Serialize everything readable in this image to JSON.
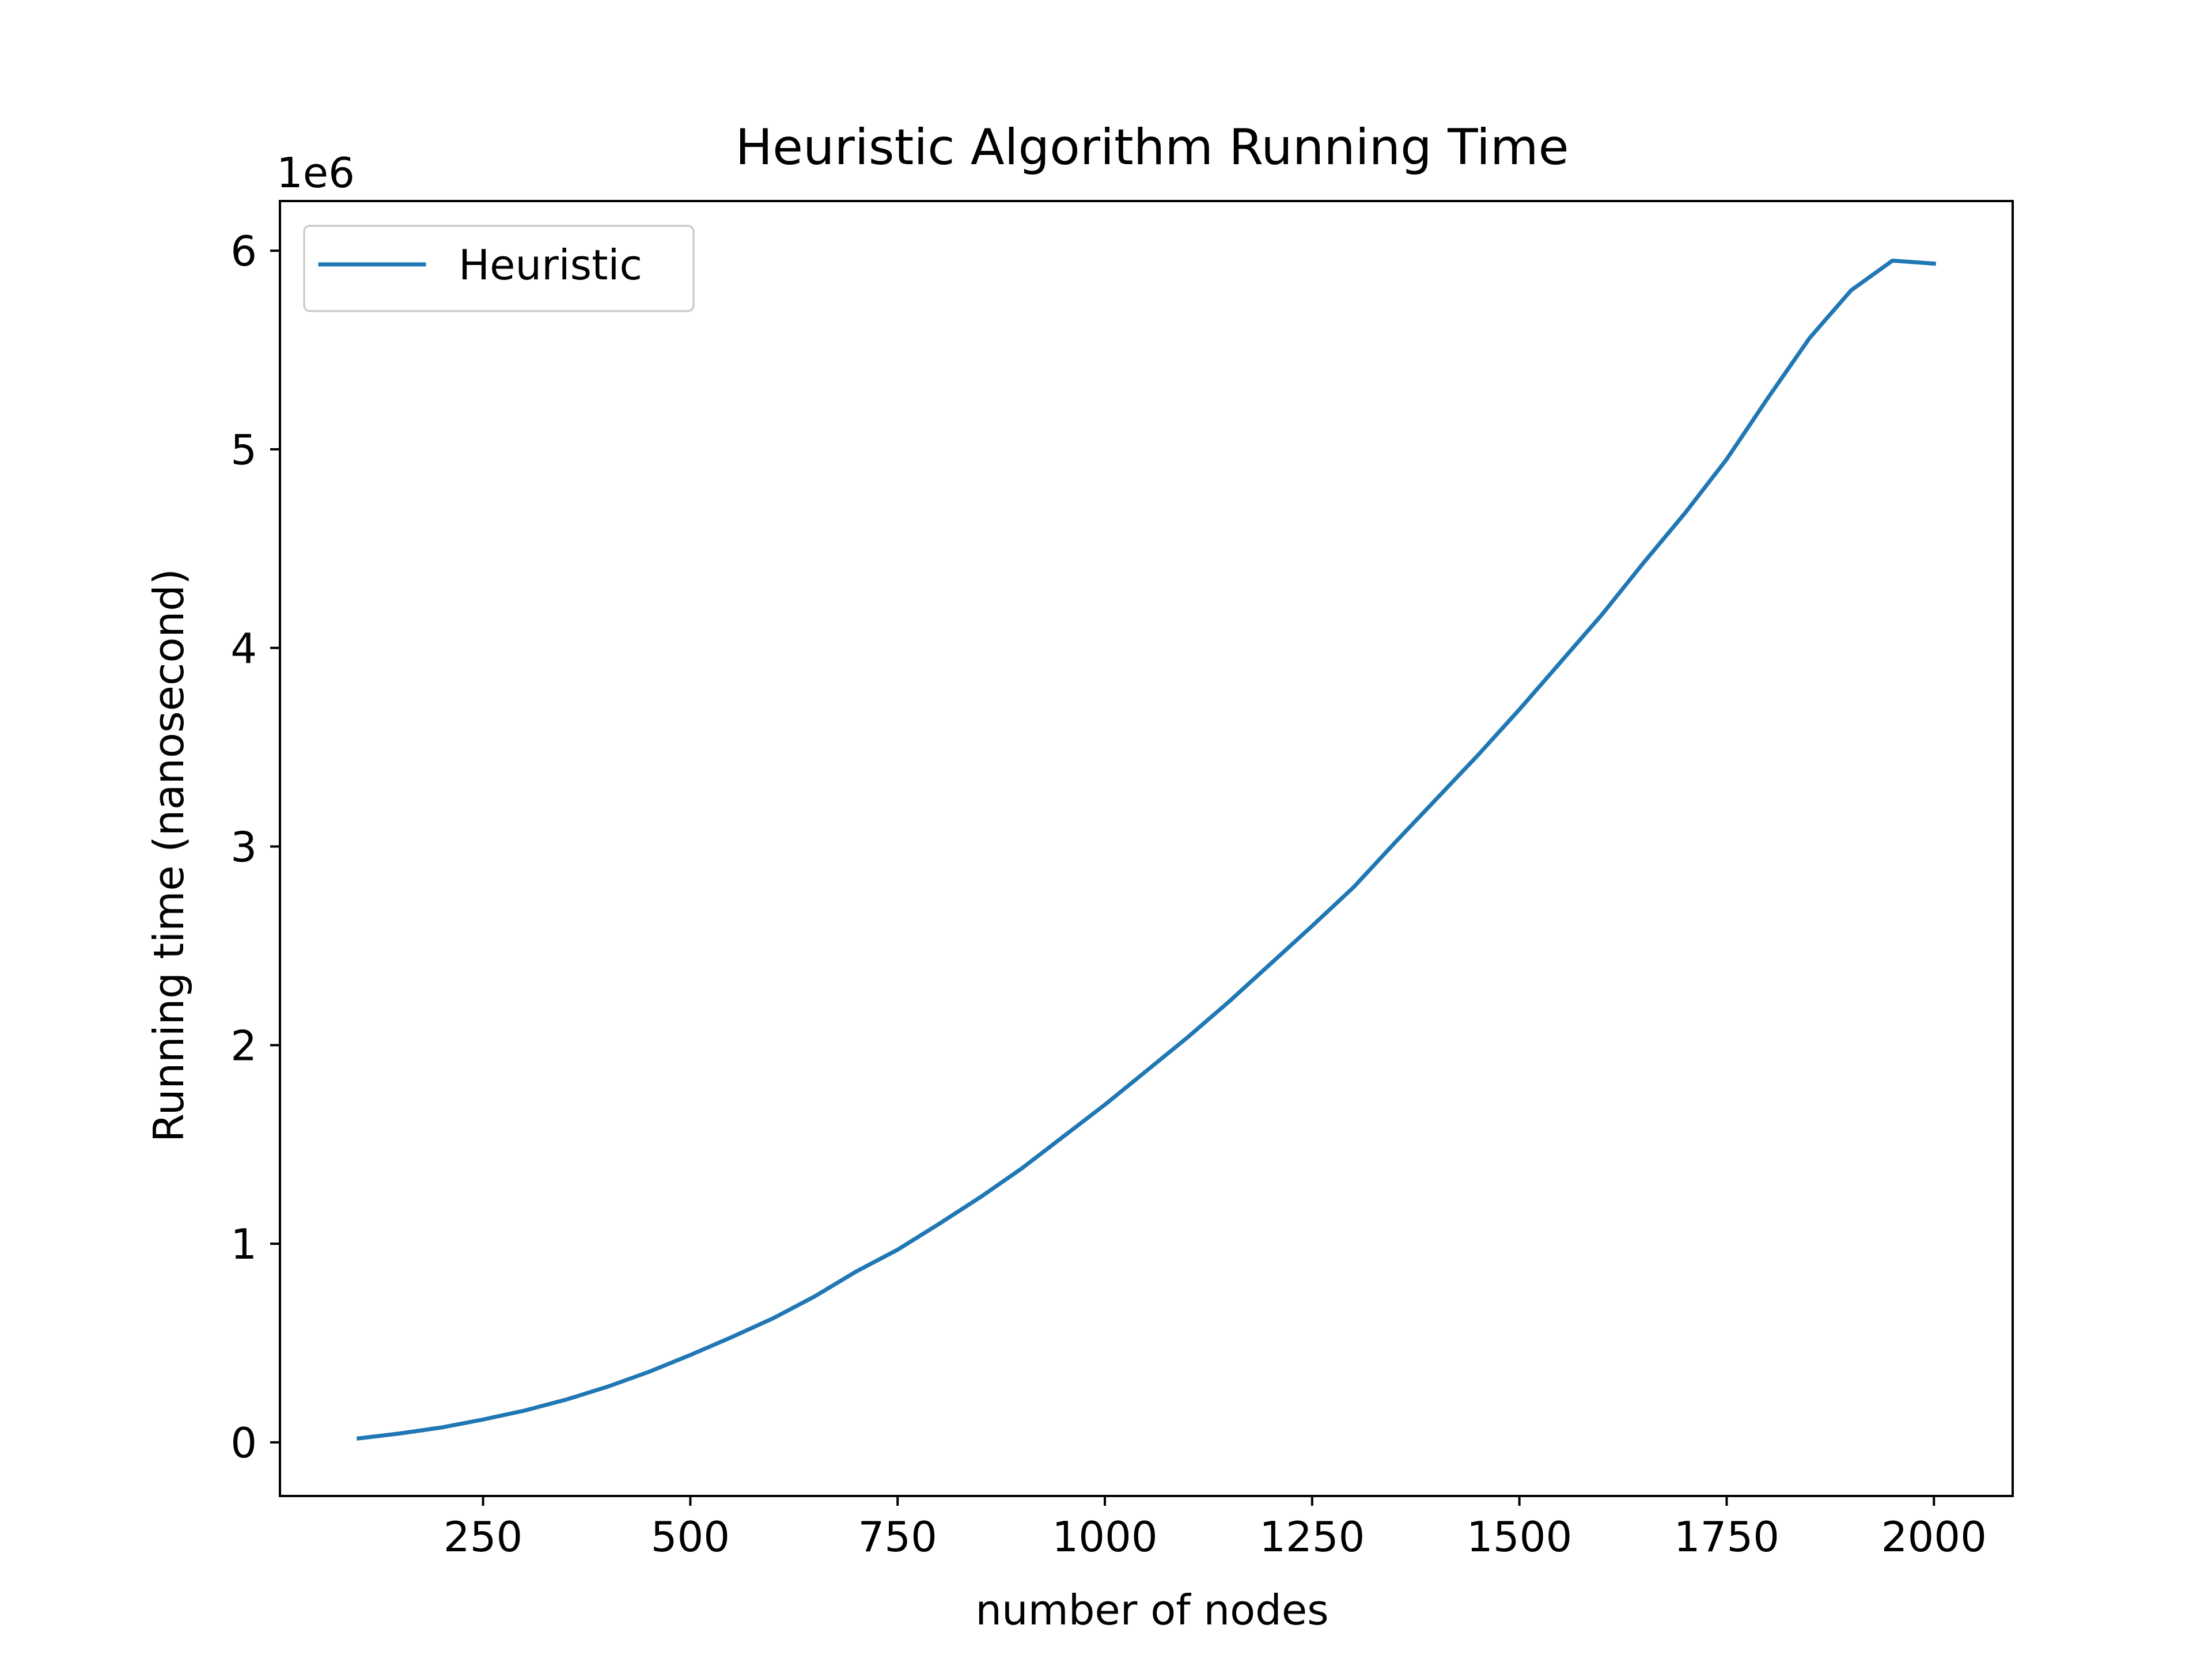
{
  "chart_data": {
    "type": "line",
    "title": "Heuristic Algorithm Running Time",
    "xlabel": "number of nodes",
    "ylabel": "Running time (nanosecond)",
    "y_offset_label": "1e6",
    "y_scale_factor": 1000000,
    "xlim": [
      5,
      2095
    ],
    "ylim": [
      -270000,
      6250000
    ],
    "x_ticks": [
      250,
      500,
      750,
      1000,
      1250,
      1500,
      1750,
      2000
    ],
    "x_tick_labels": [
      "250",
      "500",
      "750",
      "1000",
      "1250",
      "1500",
      "1750",
      "2000"
    ],
    "y_ticks": [
      0,
      1000000,
      2000000,
      3000000,
      4000000,
      5000000,
      6000000
    ],
    "y_tick_labels": [
      "0",
      "1",
      "2",
      "3",
      "4",
      "5",
      "6"
    ],
    "grid": false,
    "legend_position": "upper-left",
    "series": [
      {
        "name": "Heuristic",
        "color": "#1f77b4",
        "x": [
          100,
          150,
          200,
          250,
          300,
          350,
          400,
          450,
          500,
          550,
          600,
          650,
          700,
          750,
          800,
          850,
          900,
          950,
          1000,
          1050,
          1100,
          1150,
          1200,
          1250,
          1300,
          1350,
          1400,
          1450,
          1500,
          1550,
          1600,
          1650,
          1700,
          1750,
          1800,
          1850,
          1900,
          1950,
          2000
        ],
        "y": [
          20000,
          45000,
          75000,
          115000,
          160000,
          215000,
          280000,
          355000,
          440000,
          530000,
          625000,
          735000,
          860000,
          970000,
          1100000,
          1235000,
          1380000,
          1540000,
          1700000,
          1870000,
          2040000,
          2220000,
          2410000,
          2600000,
          2795000,
          3020000,
          3240000,
          3460000,
          3690000,
          3930000,
          4170000,
          4430000,
          4680000,
          4950000,
          5260000,
          5560000,
          5800000,
          5950000,
          5935000
        ]
      }
    ]
  }
}
